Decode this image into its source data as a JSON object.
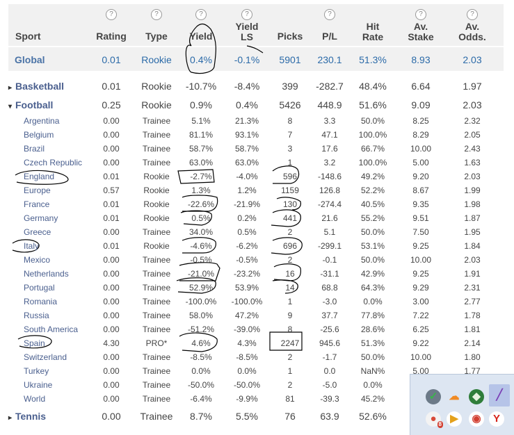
{
  "headers": {
    "sport": "Sport",
    "rating": "Rating",
    "type": "Type",
    "yield": "Yield",
    "yield_ls_1": "Yield",
    "yield_ls_2": "LS",
    "picks": "Picks",
    "pl": "P/L",
    "hit_1": "Hit",
    "hit_2": "Rate",
    "stake_1": "Av.",
    "stake_2": "Stake",
    "odds_1": "Av.",
    "odds_2": "Odds.",
    "help_icon_text": "?"
  },
  "global": {
    "sport": "Global",
    "rating": "0.01",
    "type": "Rookie",
    "yield": "0.4%",
    "yield_ls": "-0.1%",
    "picks": "5901",
    "pl": "230.1",
    "hit": "51.3%",
    "stake": "8.93",
    "odds": "2.03"
  },
  "basketball": {
    "caret": "▸",
    "sport": "Basketball",
    "rating": "0.01",
    "type": "Rookie",
    "yield": "-10.7%",
    "yield_ls": "-8.4%",
    "picks": "399",
    "pl": "-282.7",
    "hit": "48.4%",
    "stake": "6.64",
    "odds": "1.97"
  },
  "football": {
    "caret": "▾",
    "sport": "Football",
    "rating": "0.25",
    "type": "Rookie",
    "yield": "0.9%",
    "yield_ls": "0.4%",
    "picks": "5426",
    "pl": "448.9",
    "hit": "51.6%",
    "stake": "9.09",
    "odds": "2.03"
  },
  "countries": [
    {
      "sport": "Argentina",
      "rating": "0.00",
      "type": "Trainee",
      "yield": "5.1%",
      "yield_ls": "21.3%",
      "picks": "8",
      "pl": "3.3",
      "hit": "50.0%",
      "stake": "8.25",
      "odds": "2.32"
    },
    {
      "sport": "Belgium",
      "rating": "0.00",
      "type": "Trainee",
      "yield": "81.1%",
      "yield_ls": "93.1%",
      "picks": "7",
      "pl": "47.1",
      "hit": "100.0%",
      "stake": "8.29",
      "odds": "2.05"
    },
    {
      "sport": "Brazil",
      "rating": "0.00",
      "type": "Trainee",
      "yield": "58.7%",
      "yield_ls": "58.7%",
      "picks": "3",
      "pl": "17.6",
      "hit": "66.7%",
      "stake": "10.00",
      "odds": "2.43"
    },
    {
      "sport": "Czech Republic",
      "rating": "0.00",
      "type": "Trainee",
      "yield": "63.0%",
      "yield_ls": "63.0%",
      "picks": "1",
      "pl": "3.2",
      "hit": "100.0%",
      "stake": "5.00",
      "odds": "1.63"
    },
    {
      "sport": "England",
      "rating": "0.01",
      "type": "Rookie",
      "yield": "-2.7%",
      "yield_ls": "-4.0%",
      "picks": "596",
      "pl": "-148.6",
      "hit": "49.2%",
      "stake": "9.20",
      "odds": "2.03"
    },
    {
      "sport": "Europe",
      "rating": "0.57",
      "type": "Rookie",
      "yield": "1.3%",
      "yield_ls": "1.2%",
      "picks": "1159",
      "pl": "126.8",
      "hit": "52.2%",
      "stake": "8.67",
      "odds": "1.99"
    },
    {
      "sport": "France",
      "rating": "0.01",
      "type": "Rookie",
      "yield": "-22.6%",
      "yield_ls": "-21.9%",
      "picks": "130",
      "pl": "-274.4",
      "hit": "40.5%",
      "stake": "9.35",
      "odds": "1.98"
    },
    {
      "sport": "Germany",
      "rating": "0.01",
      "type": "Rookie",
      "yield": "0.5%",
      "yield_ls": "0.2%",
      "picks": "441",
      "pl": "21.6",
      "hit": "55.2%",
      "stake": "9.51",
      "odds": "1.87"
    },
    {
      "sport": "Greece",
      "rating": "0.00",
      "type": "Trainee",
      "yield": "34.0%",
      "yield_ls": "0.5%",
      "picks": "2",
      "pl": "5.1",
      "hit": "50.0%",
      "stake": "7.50",
      "odds": "1.95"
    },
    {
      "sport": "Italy",
      "rating": "0.01",
      "type": "Rookie",
      "yield": "-4.6%",
      "yield_ls": "-6.2%",
      "picks": "696",
      "pl": "-299.1",
      "hit": "53.1%",
      "stake": "9.25",
      "odds": "1.84"
    },
    {
      "sport": "Mexico",
      "rating": "0.00",
      "type": "Trainee",
      "yield": "-0.5%",
      "yield_ls": "-0.5%",
      "picks": "2",
      "pl": "-0.1",
      "hit": "50.0%",
      "stake": "10.00",
      "odds": "2.03"
    },
    {
      "sport": "Netherlands",
      "rating": "0.00",
      "type": "Trainee",
      "yield": "-21.0%",
      "yield_ls": "-23.2%",
      "picks": "16",
      "pl": "-31.1",
      "hit": "42.9%",
      "stake": "9.25",
      "odds": "1.91"
    },
    {
      "sport": "Portugal",
      "rating": "0.00",
      "type": "Trainee",
      "yield": "52.9%",
      "yield_ls": "53.9%",
      "picks": "14",
      "pl": "68.8",
      "hit": "64.3%",
      "stake": "9.29",
      "odds": "2.31"
    },
    {
      "sport": "Romania",
      "rating": "0.00",
      "type": "Trainee",
      "yield": "-100.0%",
      "yield_ls": "-100.0%",
      "picks": "1",
      "pl": "-3.0",
      "hit": "0.0%",
      "stake": "3.00",
      "odds": "2.77"
    },
    {
      "sport": "Russia",
      "rating": "0.00",
      "type": "Trainee",
      "yield": "58.0%",
      "yield_ls": "47.2%",
      "picks": "9",
      "pl": "37.7",
      "hit": "77.8%",
      "stake": "7.22",
      "odds": "1.78"
    },
    {
      "sport": "South America",
      "rating": "0.00",
      "type": "Trainee",
      "yield": "-51.2%",
      "yield_ls": "-39.0%",
      "picks": "8",
      "pl": "-25.6",
      "hit": "28.6%",
      "stake": "6.25",
      "odds": "1.81"
    },
    {
      "sport": "Spain",
      "rating": "4.30",
      "type": "PRO*",
      "yield": "4.6%",
      "yield_ls": "4.3%",
      "picks": "2247",
      "pl": "945.6",
      "hit": "51.3%",
      "stake": "9.22",
      "odds": "2.14"
    },
    {
      "sport": "Switzerland",
      "rating": "0.00",
      "type": "Trainee",
      "yield": "-8.5%",
      "yield_ls": "-8.5%",
      "picks": "2",
      "pl": "-1.7",
      "hit": "50.0%",
      "stake": "10.00",
      "odds": "1.80"
    },
    {
      "sport": "Turkey",
      "rating": "0.00",
      "type": "Trainee",
      "yield": "0.0%",
      "yield_ls": "0.0%",
      "picks": "1",
      "pl": "0.0",
      "hit": "NaN%",
      "stake": "5.00",
      "odds": "1.77"
    },
    {
      "sport": "Ukraine",
      "rating": "0.00",
      "type": "Trainee",
      "yield": "-50.0%",
      "yield_ls": "-50.0%",
      "picks": "2",
      "pl": "-5.0",
      "hit": "0.0%",
      "stake": "",
      "odds": ""
    },
    {
      "sport": "World",
      "rating": "0.00",
      "type": "Trainee",
      "yield": "-6.4%",
      "yield_ls": "-9.9%",
      "picks": "81",
      "pl": "-39.3",
      "hit": "45.2%",
      "stake": "",
      "odds": ""
    }
  ],
  "tennis": {
    "caret": "▸",
    "sport": "Tennis",
    "rating": "0.00",
    "type": "Trainee",
    "yield": "8.7%",
    "yield_ls": "5.5%",
    "picks": "76",
    "pl": "63.9",
    "hit": "52.6%",
    "stake": "",
    "odds": ""
  },
  "tray": {
    "icons": [
      "usb-safely-remove-icon",
      "cloud-icon",
      "antivirus-icon",
      "pen-icon",
      "chrome-notify-icon",
      "media-player-icon",
      "chrome-icon",
      "yandex-icon"
    ],
    "badge": "8"
  },
  "colors": {
    "link": "#4a5f8e",
    "global": "#2b6aa8",
    "header_bg": "#f1f1f1",
    "ink_annotations": "#000000"
  }
}
